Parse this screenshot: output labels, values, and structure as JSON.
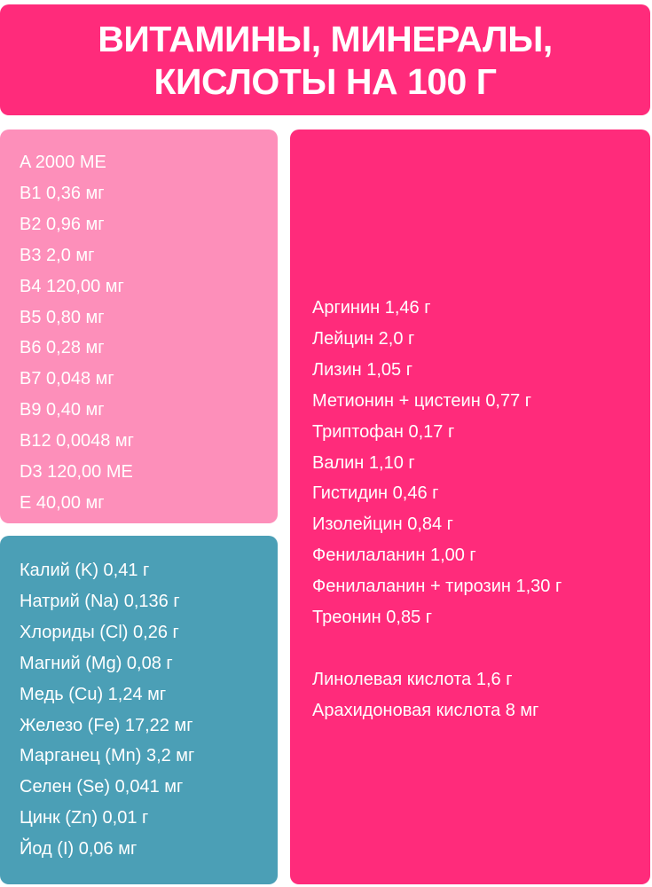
{
  "header": {
    "title_line1": "ВИТАМИНЫ, МИНЕРАЛЫ,",
    "title_line2": "КИСЛОТЫ НА 100 Г"
  },
  "colors": {
    "header": "#ff2b7b",
    "vitamins": "#fd8fba",
    "minerals": "#4b9fb6",
    "amino": "#ff2b7b"
  },
  "vitamins": [
    "A 2000 МЕ",
    "B1 0,36 мг",
    "B2 0,96 мг",
    "B3 2,0 мг",
    "B4 120,00 мг",
    "B5 0,80 мг",
    "B6 0,28 мг",
    "B7 0,048 мг",
    "B9 0,40 мг",
    "B12 0,0048 мг",
    "D3 120,00 МЕ",
    "E 40,00 мг"
  ],
  "minerals": [
    "Калий (K) 0,41 г",
    "Натрий (Na) 0,136 г",
    "Хлориды (Cl) 0,26 г",
    "Магний (Mg) 0,08 г",
    "Медь (Cu) 1,24 мг",
    "Железо (Fe) 17,22 мг",
    "Марганец (Mn) 3,2 мг",
    "Селен (Se) 0,041 мг",
    "Цинк (Zn) 0,01 г",
    "Йод (I) 0,06 мг"
  ],
  "amino_acids": [
    "Аргинин 1,46 г",
    "Лейцин 2,0 г",
    "Лизин 1,05 г",
    "Метионин + цистеин 0,77 г",
    "Триптофан 0,17 г",
    "Валин 1,10 г",
    "Гистидин 0,46 г",
    "Изолейцин 0,84 г",
    "Фенилаланин 1,00 г",
    "Фенилаланин + тирозин 1,30 г",
    "Треонин 0,85 г"
  ],
  "fatty_acids": [
    "Линолевая кислота 1,6 г",
    "Арахидоновая кислота 8 мг"
  ]
}
